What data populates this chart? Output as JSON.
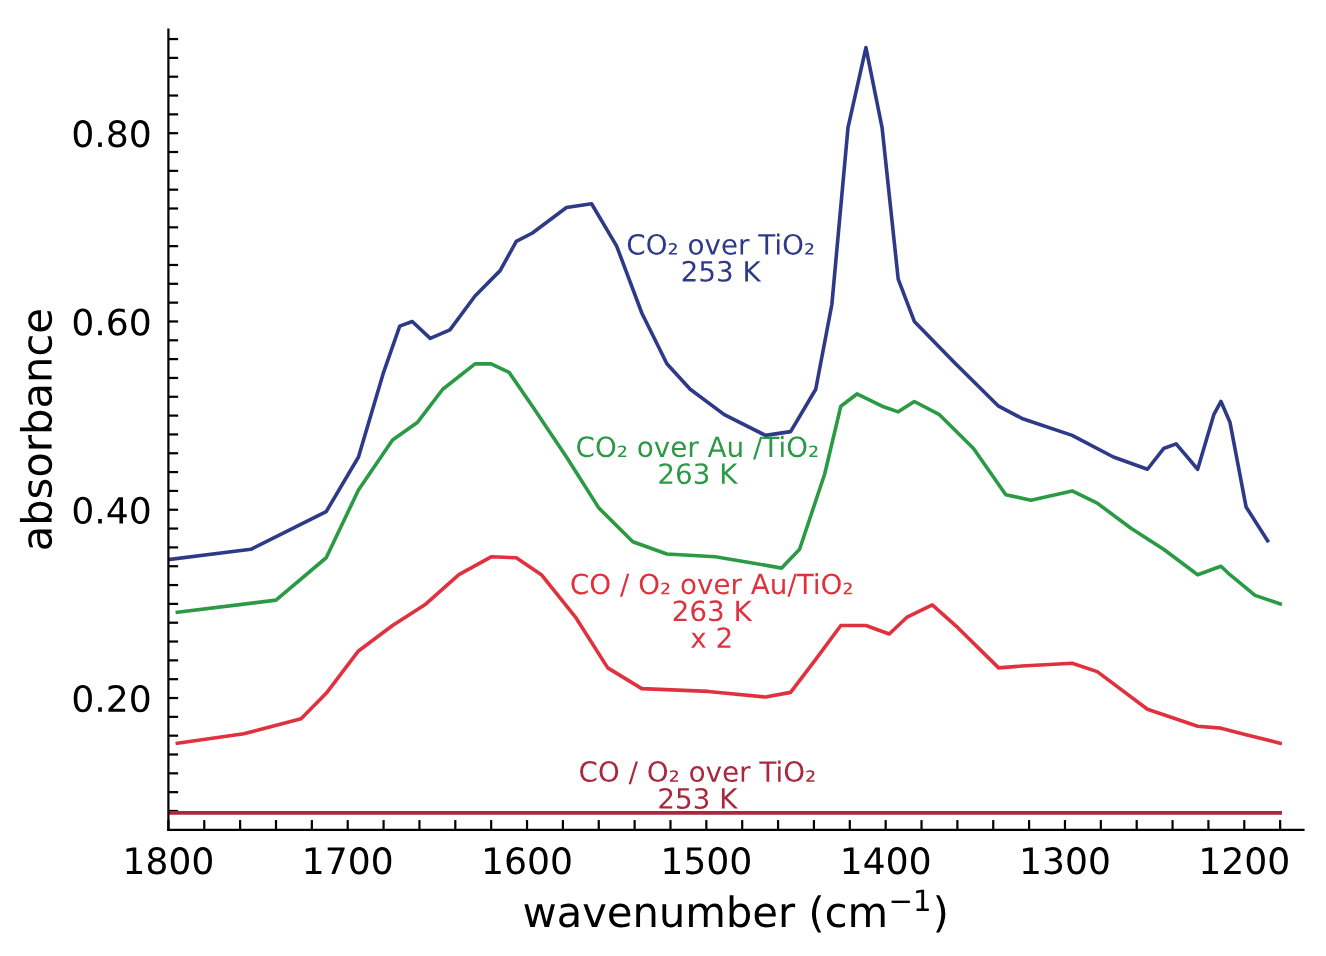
{
  "chart_data": {
    "type": "line",
    "xlabel": "wavenumber (cm$^{−1}$)",
    "ylabel": "absorbance",
    "xlim": [
      1800,
      1167
    ],
    "ylim": [
      0.06,
      0.91
    ],
    "xticks": [
      1800,
      {
        "value": 1780,
        "label": null
      },
      {
        "value": 1760,
        "label": null
      },
      {
        "value": 1740,
        "label": null
      },
      {
        "value": 1720,
        "label": null
      },
      1700,
      {
        "value": 1680,
        "label": null
      },
      {
        "value": 1660,
        "label": null
      },
      {
        "value": 1640,
        "label": null
      },
      {
        "value": 1620,
        "label": null
      },
      1600,
      {
        "value": 1580,
        "label": null
      },
      {
        "value": 1560,
        "label": null
      },
      {
        "value": 1540,
        "label": null
      },
      {
        "value": 1520,
        "label": null
      },
      1500,
      {
        "value": 1480,
        "label": null
      },
      {
        "value": 1460,
        "label": null
      },
      {
        "value": 1440,
        "label": null
      },
      {
        "value": 1420,
        "label": null
      },
      1400,
      {
        "value": 1380,
        "label": null
      },
      {
        "value": 1360,
        "label": null
      },
      {
        "value": 1340,
        "label": null
      },
      {
        "value": 1320,
        "label": null
      },
      1300,
      {
        "value": 1280,
        "label": null
      },
      {
        "value": 1260,
        "label": null
      },
      {
        "value": 1240,
        "label": null
      },
      {
        "value": 1220,
        "label": null
      },
      1200,
      {
        "value": 1180,
        "label": null
      }
    ],
    "yticks": [
      {
        "value": 0.08,
        "label": null
      },
      {
        "value": 0.1,
        "label": null
      },
      {
        "value": 0.12,
        "label": null
      },
      {
        "value": 0.14,
        "label": null
      },
      {
        "value": 0.16,
        "label": null
      },
      {
        "value": 0.18,
        "label": null
      },
      {
        "value": 0.2,
        "label": "0.20"
      },
      {
        "value": 0.22,
        "label": null
      },
      {
        "value": 0.24,
        "label": null
      },
      {
        "value": 0.26,
        "label": null
      },
      {
        "value": 0.28,
        "label": null
      },
      {
        "value": 0.3,
        "label": null
      },
      {
        "value": 0.32,
        "label": null
      },
      {
        "value": 0.34,
        "label": null
      },
      {
        "value": 0.36,
        "label": null
      },
      {
        "value": 0.38,
        "label": null
      },
      {
        "value": 0.4,
        "label": "0.40"
      },
      {
        "value": 0.42,
        "label": null
      },
      {
        "value": 0.44,
        "label": null
      },
      {
        "value": 0.46,
        "label": null
      },
      {
        "value": 0.48,
        "label": null
      },
      {
        "value": 0.5,
        "label": null
      },
      {
        "value": 0.52,
        "label": null
      },
      {
        "value": 0.54,
        "label": null
      },
      {
        "value": 0.56,
        "label": null
      },
      {
        "value": 0.58,
        "label": null
      },
      {
        "value": 0.6,
        "label": "0.60"
      },
      {
        "value": 0.62,
        "label": null
      },
      {
        "value": 0.64,
        "label": null
      },
      {
        "value": 0.66,
        "label": null
      },
      {
        "value": 0.68,
        "label": null
      },
      {
        "value": 0.7,
        "label": null
      },
      {
        "value": 0.72,
        "label": null
      },
      {
        "value": 0.74,
        "label": null
      },
      {
        "value": 0.76,
        "label": null
      },
      {
        "value": 0.78,
        "label": null
      },
      {
        "value": 0.8,
        "label": "0.80"
      },
      {
        "value": 0.82,
        "label": null
      },
      {
        "value": 0.84,
        "label": null
      },
      {
        "value": 0.86,
        "label": null
      },
      {
        "value": 0.88,
        "label": null
      },
      {
        "value": 0.9,
        "label": null
      }
    ],
    "grid": false,
    "legend": false,
    "marker": "none",
    "line_style": "solid",
    "series": [
      {
        "name": "CO₂ over TiO₂\n253 K",
        "color": "#2e3a87",
        "x": [
          1800,
          1754,
          1712,
          1694,
          1680,
          1671,
          1664,
          1654,
          1643,
          1629,
          1615,
          1606,
          1597,
          1578,
          1564,
          1550,
          1536,
          1522,
          1509,
          1490,
          1467,
          1453,
          1439,
          1430,
          1421,
          1411,
          1402,
          1393,
          1384,
          1361,
          1337,
          1324,
          1296,
          1273,
          1254,
          1245,
          1238,
          1226,
          1217,
          1213,
          1208,
          1199,
          1187
        ],
        "values": [
          0.347,
          0.358,
          0.398,
          0.456,
          0.546,
          0.595,
          0.6,
          0.582,
          0.591,
          0.627,
          0.654,
          0.685,
          0.694,
          0.721,
          0.725,
          0.68,
          0.609,
          0.555,
          0.528,
          0.501,
          0.479,
          0.483,
          0.528,
          0.618,
          0.806,
          0.891,
          0.806,
          0.645,
          0.6,
          0.555,
          0.51,
          0.497,
          0.479,
          0.456,
          0.443,
          0.465,
          0.47,
          0.443,
          0.501,
          0.515,
          0.493,
          0.403,
          0.367
        ]
      },
      {
        "name": "CO₂ over Au /TiO₂\n263 K",
        "color": "#2a9a45",
        "x": [
          1795,
          1740,
          1712,
          1694,
          1675,
          1661,
          1647,
          1629,
          1620,
          1610,
          1597,
          1578,
          1560,
          1541,
          1522,
          1495,
          1476,
          1458,
          1448,
          1434,
          1425,
          1416,
          1402,
          1393,
          1384,
          1370,
          1351,
          1333,
          1319,
          1296,
          1282,
          1263,
          1245,
          1226,
          1213,
          1208,
          1194,
          1180
        ],
        "values": [
          0.291,
          0.304,
          0.349,
          0.421,
          0.474,
          0.493,
          0.528,
          0.555,
          0.555,
          0.546,
          0.51,
          0.456,
          0.402,
          0.366,
          0.353,
          0.35,
          0.344,
          0.338,
          0.358,
          0.438,
          0.51,
          0.523,
          0.51,
          0.504,
          0.515,
          0.501,
          0.465,
          0.416,
          0.41,
          0.42,
          0.407,
          0.38,
          0.358,
          0.331,
          0.34,
          0.331,
          0.309,
          0.3
        ]
      },
      {
        "name": "CO / O₂ over Au/TiO₂\n263 K\nx 2",
        "color": "#e0323e",
        "x": [
          1795,
          1758,
          1726,
          1712,
          1694,
          1675,
          1657,
          1638,
          1620,
          1606,
          1592,
          1573,
          1555,
          1536,
          1499,
          1467,
          1453,
          1439,
          1425,
          1411,
          1398,
          1388,
          1374,
          1361,
          1337,
          1324,
          1296,
          1282,
          1254,
          1226,
          1213,
          1199,
          1180
        ],
        "values": [
          0.152,
          0.162,
          0.178,
          0.205,
          0.25,
          0.277,
          0.299,
          0.331,
          0.35,
          0.349,
          0.331,
          0.286,
          0.232,
          0.21,
          0.207,
          0.201,
          0.206,
          0.241,
          0.277,
          0.277,
          0.268,
          0.286,
          0.299,
          0.277,
          0.232,
          0.234,
          0.237,
          0.228,
          0.188,
          0.17,
          0.168,
          0.161,
          0.152
        ]
      },
      {
        "name": "CO / O₂ over TiO₂\n253 K",
        "color": "#a8283e",
        "x": [
          1800,
          1700,
          1600,
          1500,
          1400,
          1300,
          1200,
          1180
        ],
        "values": [
          0.078,
          0.078,
          0.078,
          0.078,
          0.078,
          0.078,
          0.078,
          0.078
        ]
      }
    ]
  }
}
